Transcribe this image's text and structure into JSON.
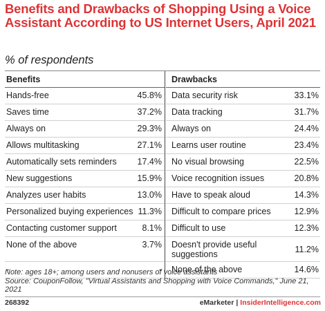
{
  "title": "Benefits and Drawbacks of Shopping Using a Voice Assistant According to US Internet Users, April 2021",
  "subtitle": "% of respondents",
  "chart_data": {
    "type": "table",
    "title": "Benefits and Drawbacks of Shopping Using a Voice Assistant According to US Internet Users, April 2021",
    "subtitle": "% of respondents",
    "benefits_header": "Benefits",
    "drawbacks_header": "Drawbacks",
    "benefits": [
      {
        "label": "Hands-free",
        "value": "45.8%"
      },
      {
        "label": "Saves time",
        "value": "37.2%"
      },
      {
        "label": "Always on",
        "value": "29.3%"
      },
      {
        "label": "Allows multitasking",
        "value": "27.1%"
      },
      {
        "label": "Automatically sets reminders",
        "value": "17.4%"
      },
      {
        "label": "New suggestions",
        "value": "15.9%"
      },
      {
        "label": "Analyzes user habits",
        "value": "13.0%"
      },
      {
        "label": "Personalized buying experiences",
        "value": "11.3%"
      },
      {
        "label": "Contacting customer support",
        "value": "8.1%"
      },
      {
        "label": "None of the above",
        "value": "3.7%"
      },
      {
        "label": "-",
        "value": "-"
      }
    ],
    "drawbacks": [
      {
        "label": "Data security risk",
        "value": "33.1%"
      },
      {
        "label": "Data tracking",
        "value": "31.7%"
      },
      {
        "label": "Always on",
        "value": "24.4%"
      },
      {
        "label": "Learns user routine",
        "value": "23.4%"
      },
      {
        "label": "No visual browsing",
        "value": "22.5%"
      },
      {
        "label": "Voice recognition issues",
        "value": "20.8%"
      },
      {
        "label": "Have to speak aloud",
        "value": "14.3%"
      },
      {
        "label": "Difficult to compare prices",
        "value": "12.9%"
      },
      {
        "label": "Difficult to use",
        "value": "12.3%"
      },
      {
        "label": "Doesn't provide useful suggestions",
        "value": "11.2%"
      },
      {
        "label": "None of the above",
        "value": "14.6%"
      }
    ]
  },
  "note_line1": "Note: ages 18+; among users and nonusers of voice assistants",
  "note_line2": "Source: CouponFollow, \"Virtual Assistants and Shopping with Voice Commands,\" June 21, 2021",
  "chart_id": "268392",
  "brand_emarketer": "eMarketer",
  "brand_sep": "|",
  "brand_ii": "InsiderIntelligence.com"
}
